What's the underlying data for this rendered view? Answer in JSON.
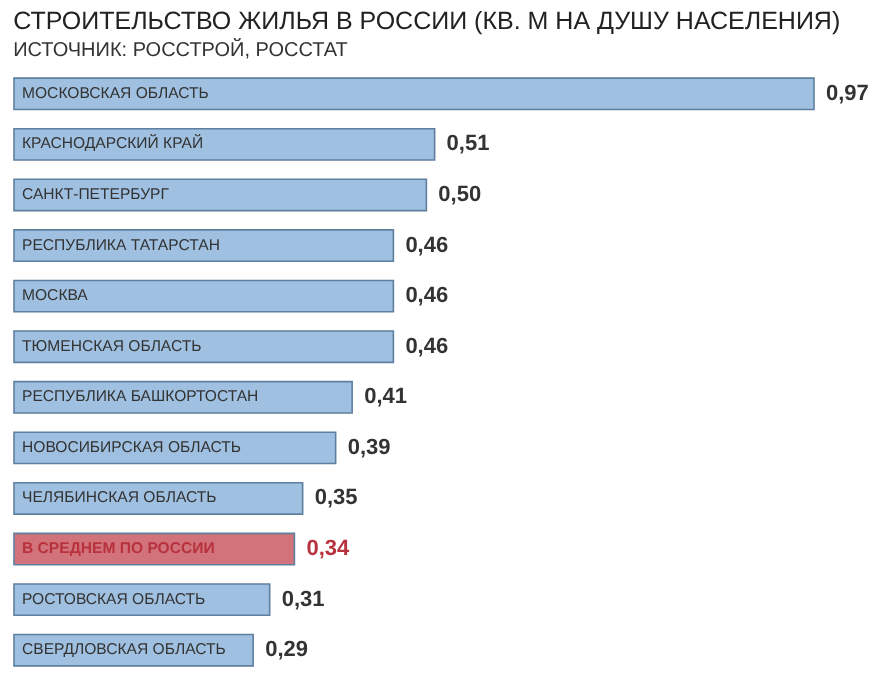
{
  "chart_data": {
    "type": "bar",
    "orientation": "horizontal",
    "title": "СТРОИТЕЛЬСТВО ЖИЛЬЯ В РОССИИ (КВ. М НА ДУШУ НАСЕЛЕНИЯ)",
    "subtitle": "ИСТОЧНИК: РОССТРОЙ, РОССТАТ",
    "categories": [
      "МОСКОВСКАЯ ОБЛАСТЬ",
      "КРАСНОДАРСКИЙ КРАЙ",
      "САНКТ-ПЕТЕРБУРГ",
      "РЕСПУБЛИКА ТАТАРСТАН",
      "МОСКВА",
      "ТЮМЕНСКАЯ ОБЛАСТЬ",
      "РЕСПУБЛИКА БАШКОРТОСТАН",
      "НОВОСИБИРСКАЯ ОБЛАСТЬ",
      "ЧЕЛЯБИНСКАЯ ОБЛАСТЬ",
      "В СРЕДНЕМ ПО РОССИИ",
      "РОСТОВСКАЯ ОБЛАСТЬ",
      "СВЕРДЛОВСКАЯ ОБЛАСТЬ"
    ],
    "values": [
      0.97,
      0.51,
      0.5,
      0.46,
      0.46,
      0.46,
      0.41,
      0.39,
      0.35,
      0.34,
      0.31,
      0.29
    ],
    "value_labels": [
      "0,97",
      "0,51",
      "0,50",
      "0,46",
      "0,46",
      "0,46",
      "0,41",
      "0,39",
      "0,35",
      "0,34",
      "0,31",
      "0,29"
    ],
    "colors": [
      "#9fc0e0",
      "#9fc0e0",
      "#9fc0e0",
      "#9fc0e0",
      "#9fc0e0",
      "#9fc0e0",
      "#9fc0e0",
      "#9fc0e0",
      "#9fc0e0",
      "#d2737b",
      "#9fc0e0",
      "#9fc0e0"
    ],
    "data_labels": true
  }
}
